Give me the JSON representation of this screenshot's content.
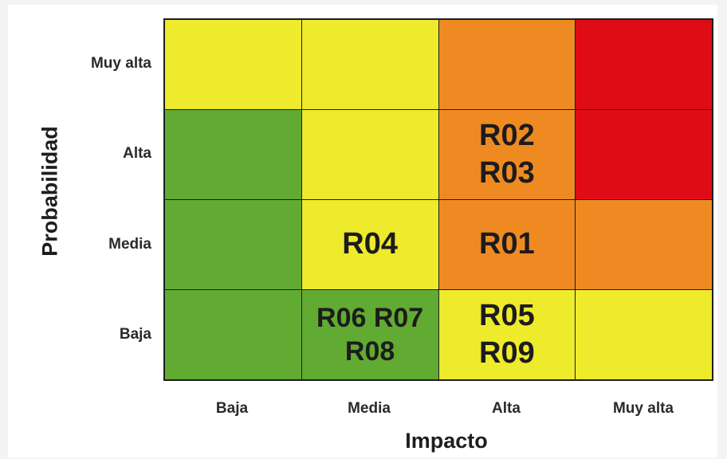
{
  "axes": {
    "y_label": "Probabilidad",
    "x_label": "Impacto",
    "y_ticks": [
      "Muy alta",
      "Alta",
      "Media",
      "Baja"
    ],
    "x_ticks": [
      "Baja",
      "Media",
      "Alta",
      "Muy alta"
    ]
  },
  "colors": {
    "green": "#61ab33",
    "yellow": "#eeea2c",
    "orange": "#ef8a22",
    "red": "#df0c15"
  },
  "matrix": {
    "rows": [
      {
        "probability": "Muy alta",
        "cells": [
          {
            "impact": "Baja",
            "color": "yellow",
            "risks": []
          },
          {
            "impact": "Media",
            "color": "yellow",
            "risks": []
          },
          {
            "impact": "Alta",
            "color": "orange",
            "risks": []
          },
          {
            "impact": "Muy alta",
            "color": "red",
            "risks": []
          }
        ]
      },
      {
        "probability": "Alta",
        "cells": [
          {
            "impact": "Baja",
            "color": "green",
            "risks": []
          },
          {
            "impact": "Media",
            "color": "yellow",
            "risks": []
          },
          {
            "impact": "Alta",
            "color": "orange",
            "risks": [
              "R02",
              "R03"
            ]
          },
          {
            "impact": "Muy alta",
            "color": "red",
            "risks": []
          }
        ]
      },
      {
        "probability": "Media",
        "cells": [
          {
            "impact": "Baja",
            "color": "green",
            "risks": []
          },
          {
            "impact": "Media",
            "color": "yellow",
            "risks": [
              "R04"
            ]
          },
          {
            "impact": "Alta",
            "color": "orange",
            "risks": [
              "R01"
            ]
          },
          {
            "impact": "Muy alta",
            "color": "orange",
            "risks": []
          }
        ]
      },
      {
        "probability": "Baja",
        "cells": [
          {
            "impact": "Baja",
            "color": "green",
            "risks": []
          },
          {
            "impact": "Media",
            "color": "green",
            "risks": [
              "R06 R07",
              "R08"
            ]
          },
          {
            "impact": "Alta",
            "color": "yellow",
            "risks": [
              "R05",
              "R09"
            ]
          },
          {
            "impact": "Muy alta",
            "color": "yellow",
            "risks": []
          }
        ]
      }
    ]
  }
}
